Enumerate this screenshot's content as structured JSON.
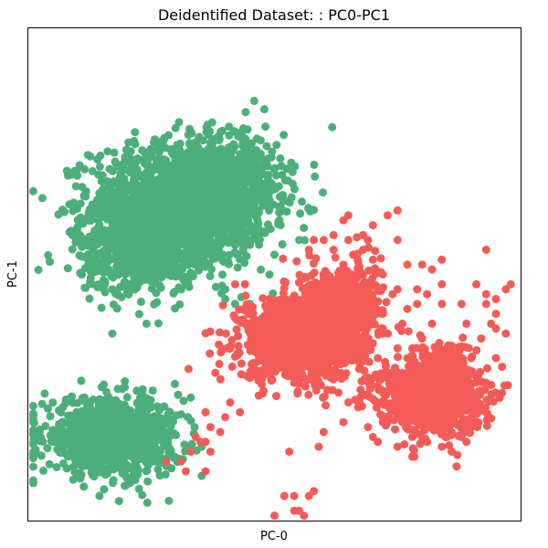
{
  "chart_data": {
    "type": "scatter",
    "title": "Deidentified Dataset: : PC0-PC1",
    "xlabel": "PC-0",
    "ylabel": "PC-1",
    "xlim": [
      0,
      100
    ],
    "ylim": [
      0,
      100
    ],
    "x_ticks_shown": false,
    "y_ticks_shown": false,
    "grid": false,
    "legend": "none",
    "series": [
      {
        "color": "#4caf7a",
        "clusters": [
          {
            "center": [
              31,
              64
            ],
            "spread": [
              9,
              6.2
            ],
            "count": 1600
          },
          {
            "center": [
              22,
              55
            ],
            "spread": [
              6,
              4.5
            ],
            "count": 500
          },
          {
            "center": [
              40,
              69
            ],
            "spread": [
              6,
              5
            ],
            "count": 450
          },
          {
            "center": [
              17,
              17
            ],
            "spread": [
              7,
              3.8
            ],
            "count": 900
          }
        ],
        "outliers": [
          [
            41,
            67
          ],
          [
            45,
            56
          ],
          [
            51,
            61
          ],
          [
            34,
            61
          ],
          [
            43,
            60
          ],
          [
            33,
            67
          ],
          [
            22,
            68
          ],
          [
            37,
            69
          ],
          [
            35,
            67
          ],
          [
            30,
            66
          ],
          [
            55,
            57
          ],
          [
            40,
            45
          ],
          [
            32,
            48
          ],
          [
            58,
            43
          ],
          [
            24,
            40
          ],
          [
            2.5,
            17
          ],
          [
            5,
            16
          ],
          [
            8,
            13
          ],
          [
            11,
            11
          ],
          [
            28,
            20
          ],
          [
            33,
            25
          ],
          [
            36,
            22
          ],
          [
            40,
            47
          ],
          [
            42,
            44
          ],
          [
            45,
            44
          ],
          [
            49,
            50
          ],
          [
            45,
            57
          ],
          [
            50,
            54
          ],
          [
            45,
            60
          ],
          [
            38,
            54
          ],
          [
            42,
            56
          ]
        ]
      },
      {
        "color": "#f45b57",
        "clusters": [
          {
            "center": [
              56,
              37
            ],
            "spread": [
              6.5,
              4.2
            ],
            "count": 1100
          },
          {
            "center": [
              64,
              45
            ],
            "spread": [
              3.8,
              3.8
            ],
            "count": 350
          },
          {
            "center": [
              82,
              25
            ],
            "spread": [
              5.2,
              3.4
            ],
            "count": 800
          },
          {
            "center": [
              84,
              30
            ],
            "spread": [
              3,
              3
            ],
            "count": 250
          }
        ],
        "outliers": [
          [
            60,
            49
          ],
          [
            64,
            52
          ],
          [
            66,
            54
          ],
          [
            68,
            50
          ],
          [
            65,
            46
          ],
          [
            69,
            47
          ],
          [
            70,
            45
          ],
          [
            72,
            39
          ],
          [
            75,
            35
          ],
          [
            77,
            33
          ],
          [
            78,
            35
          ],
          [
            76,
            30
          ],
          [
            70,
            36
          ],
          [
            68,
            40
          ],
          [
            69,
            37
          ],
          [
            71,
            33
          ],
          [
            62,
            45
          ],
          [
            58,
            48
          ],
          [
            57,
            44
          ],
          [
            55,
            42
          ],
          [
            60,
            43
          ],
          [
            42,
            48
          ],
          [
            44,
            48
          ],
          [
            52,
            44
          ],
          [
            53,
            43
          ],
          [
            45,
            29
          ],
          [
            38,
            30
          ],
          [
            36,
            22
          ],
          [
            37,
            19
          ],
          [
            35,
            16
          ],
          [
            34,
            17
          ],
          [
            33,
            14
          ],
          [
            31,
            12
          ],
          [
            28,
            12
          ],
          [
            32,
            10
          ],
          [
            36,
            10
          ],
          [
            37,
            14
          ],
          [
            36,
            16
          ],
          [
            39,
            18
          ],
          [
            40,
            21
          ],
          [
            41,
            24
          ],
          [
            43,
            22
          ],
          [
            63,
            26
          ],
          [
            65,
            24
          ],
          [
            67,
            23
          ],
          [
            64,
            20
          ],
          [
            59,
            15
          ],
          [
            60,
            18
          ],
          [
            53,
            14
          ],
          [
            54,
            28
          ],
          [
            55,
            29
          ],
          [
            60,
            31
          ],
          [
            64,
            33
          ],
          [
            71,
            24
          ],
          [
            72,
            20
          ],
          [
            76,
            20
          ],
          [
            81,
            16
          ],
          [
            86,
            14
          ],
          [
            89,
            16
          ],
          [
            91,
            22
          ],
          [
            93,
            28
          ],
          [
            95,
            33
          ],
          [
            97,
            38
          ],
          [
            95,
            42
          ],
          [
            93,
            44
          ],
          [
            93,
            46
          ],
          [
            92,
            37
          ],
          [
            91,
            48
          ],
          [
            89,
            40
          ],
          [
            90,
            33
          ],
          [
            85,
            34
          ],
          [
            82,
            40
          ],
          [
            80,
            37
          ],
          [
            77,
            43
          ],
          [
            76,
            40
          ],
          [
            75,
            47
          ],
          [
            79,
            44
          ],
          [
            81,
            46
          ],
          [
            84,
            44
          ],
          [
            84,
            53
          ],
          [
            77,
            52
          ],
          [
            70,
            53
          ],
          [
            72,
            42
          ],
          [
            72,
            50
          ],
          [
            68,
            55
          ],
          [
            69,
            57
          ],
          [
            65,
            57
          ],
          [
            64,
            61
          ],
          [
            65,
            62
          ],
          [
            68,
            58
          ],
          [
            62,
            58
          ],
          [
            58,
            57
          ],
          [
            60,
            57
          ],
          [
            57,
            55
          ],
          [
            62,
            55
          ],
          [
            70,
            60
          ],
          [
            73,
            62
          ],
          [
            75,
            63
          ],
          [
            80,
            52
          ],
          [
            82,
            51
          ],
          [
            75,
            57
          ],
          [
            93,
            55
          ],
          [
            97,
            47
          ],
          [
            98,
            48
          ],
          [
            94,
            40
          ],
          [
            95,
            39
          ],
          [
            89,
            27
          ],
          [
            91,
            25
          ],
          [
            88,
            23
          ],
          [
            88,
            17
          ],
          [
            86,
            18
          ],
          [
            90,
            19
          ],
          [
            87,
            11
          ],
          [
            85,
            17
          ],
          [
            84,
            15
          ],
          [
            79,
            20
          ],
          [
            78,
            17
          ],
          [
            78,
            13
          ],
          [
            75,
            15
          ],
          [
            71,
            16
          ],
          [
            70,
            17
          ],
          [
            69,
            19
          ],
          [
            79,
            31
          ],
          [
            74,
            46
          ],
          [
            79,
            47
          ],
          [
            84,
            48
          ],
          [
            88,
            44
          ],
          [
            95,
            45
          ],
          [
            54,
            5
          ],
          [
            57,
            5
          ],
          [
            58,
            6
          ],
          [
            55,
            2
          ],
          [
            50,
            1
          ],
          [
            54,
            2
          ],
          [
            52,
            5
          ],
          [
            56,
            1
          ]
        ]
      }
    ]
  }
}
